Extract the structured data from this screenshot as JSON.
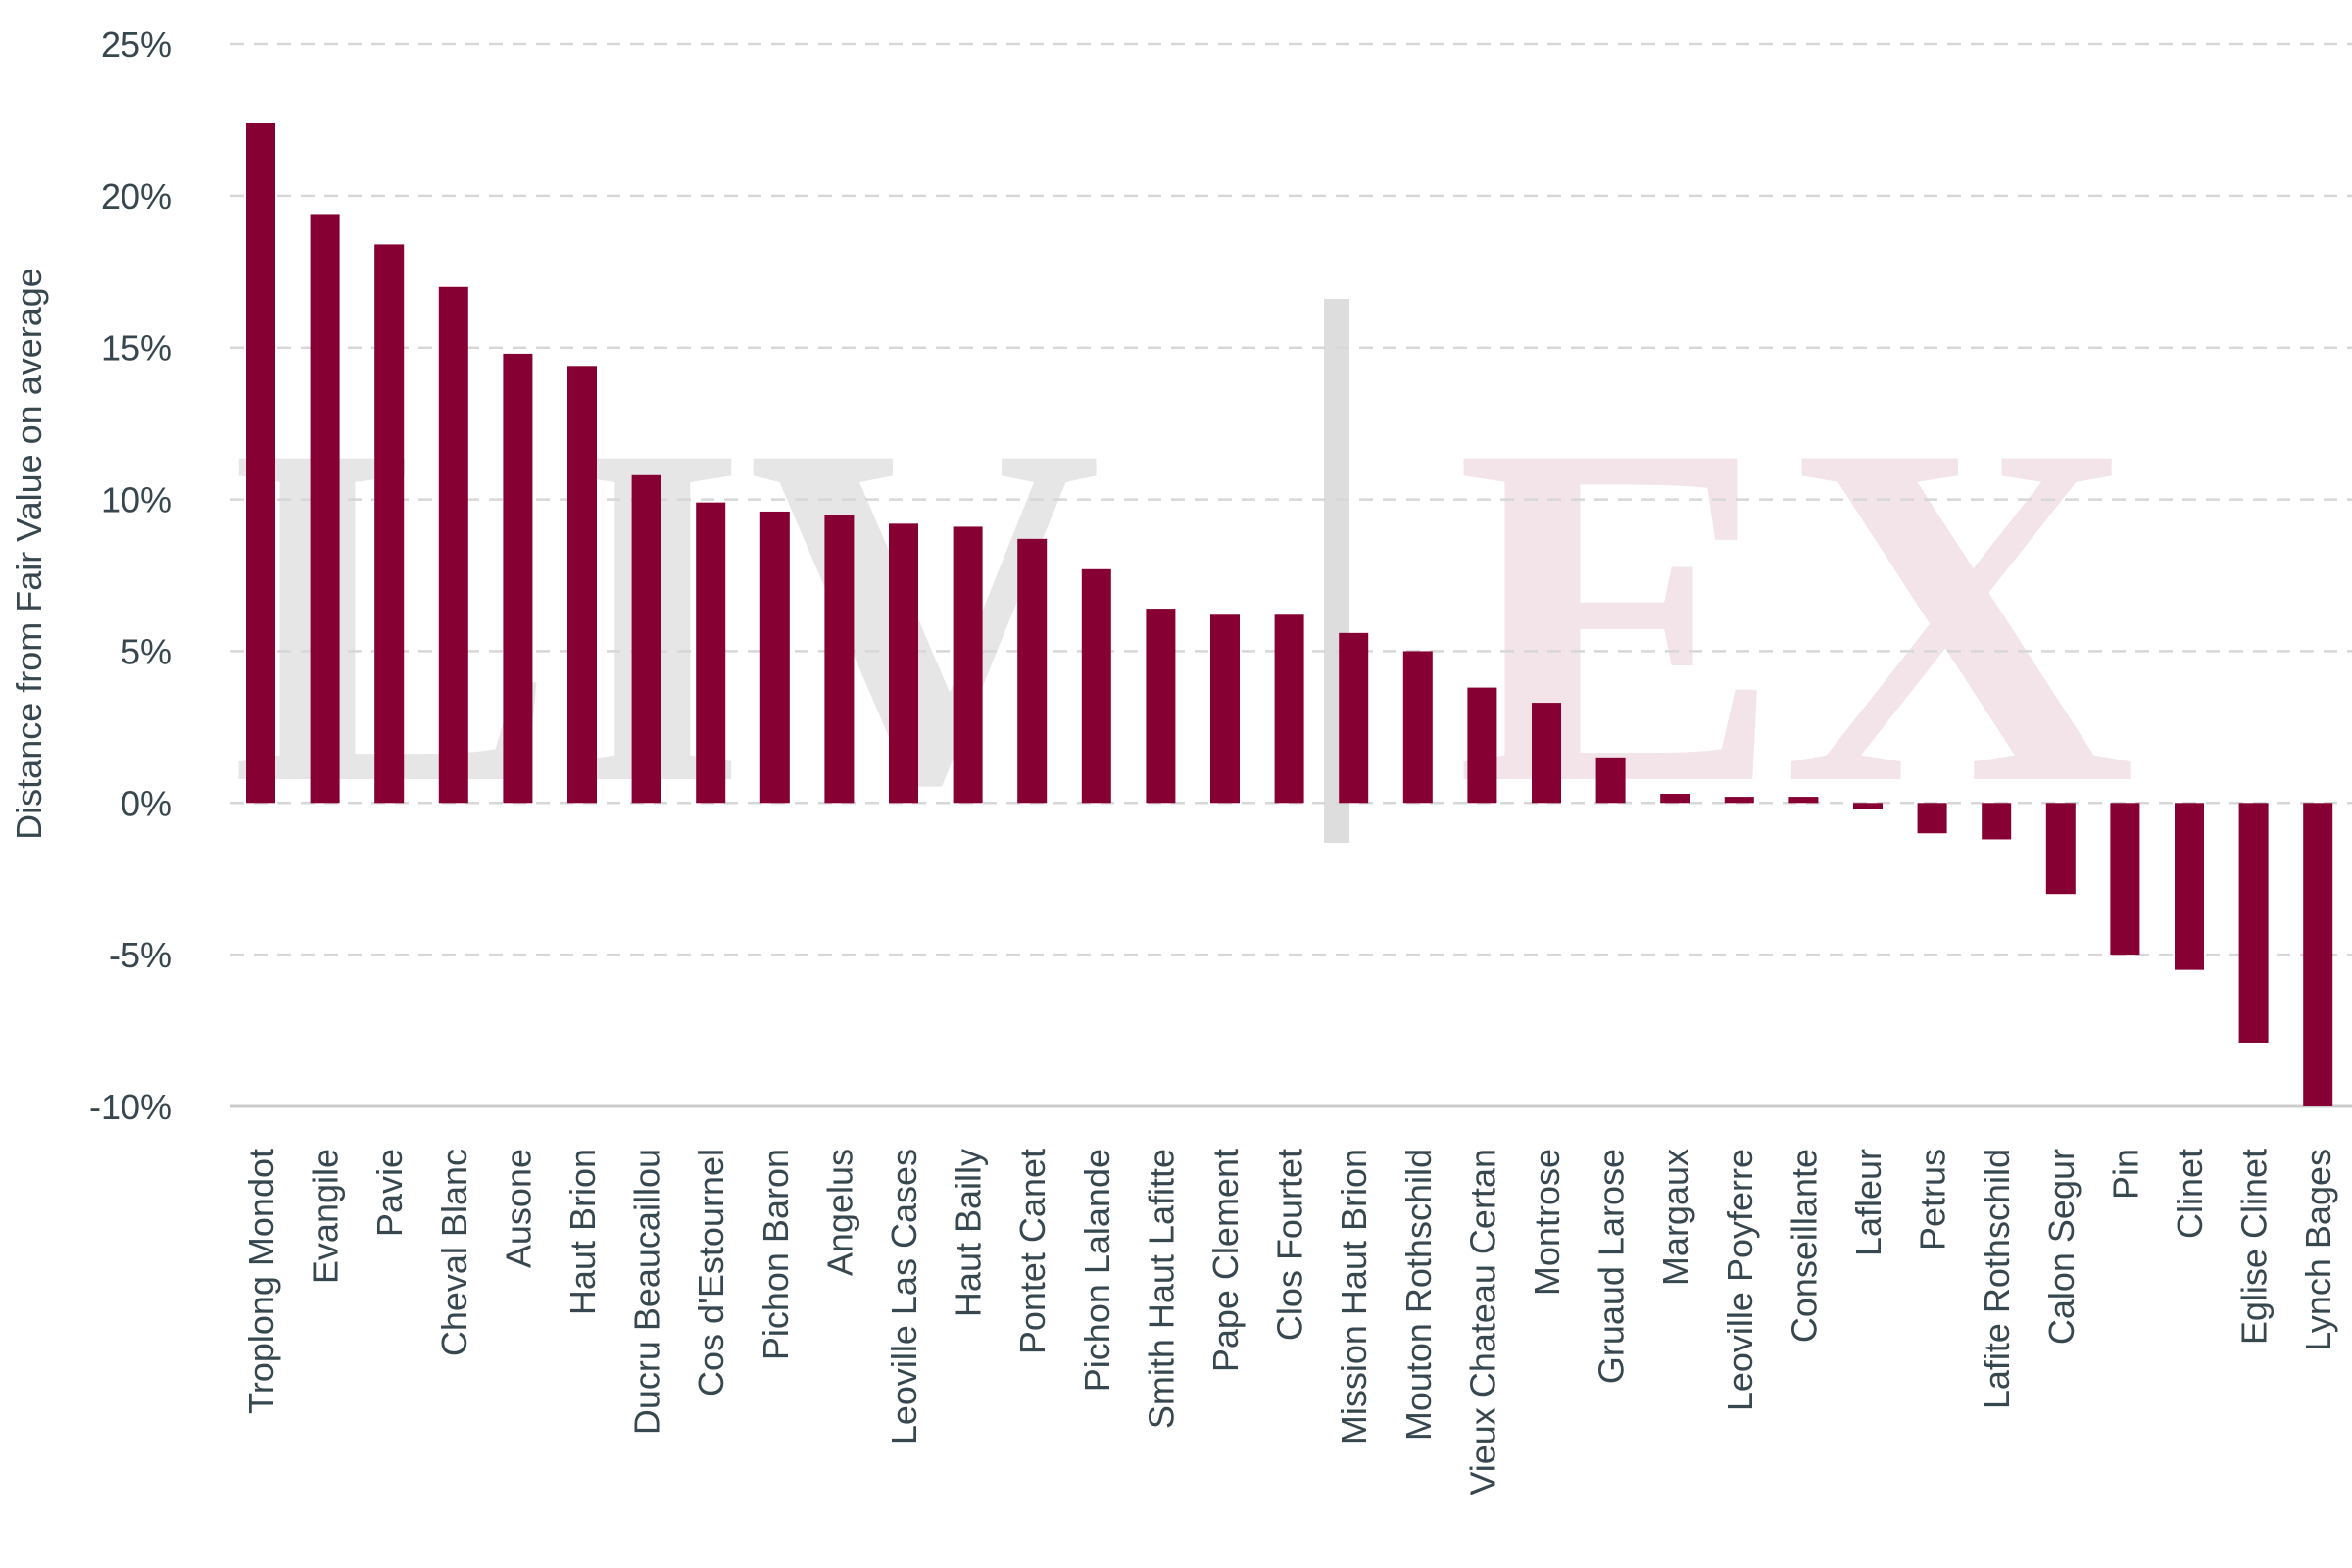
{
  "watermark": {
    "left": "LIV",
    "right": "EX",
    "left_color": "#e6e6e6",
    "right_color": "#f2e4e8",
    "divider_color": "#dddddd"
  },
  "chart_data": {
    "type": "bar",
    "title": "",
    "xlabel": "",
    "ylabel": "Distance from Fair Value on average",
    "ylim": [
      -10,
      25
    ],
    "yticks": [
      25,
      20,
      15,
      10,
      5,
      0,
      -5,
      -10
    ],
    "ytick_labels": [
      "25%",
      "20%",
      "15%",
      "10%",
      "5%",
      "0%",
      "-5%",
      "-10%"
    ],
    "grid": true,
    "bar_color": "#870033",
    "categories": [
      "Troplong Mondot",
      "Evangile",
      "Pavie",
      "Cheval Blanc",
      "Ausone",
      "Haut Brion",
      "Ducru Beaucaillou",
      "Cos d'Estournel",
      "Pichon Baron",
      "Angelus",
      "Leoville Las Cases",
      "Haut Bailly",
      "Pontet Canet",
      "Pichon Lalande",
      "Smith Haut Lafitte",
      "Pape Clement",
      "Clos Fourtet",
      "Mission Haut Brion",
      "Mouton Rothschild",
      "Vieux Chateau Certan",
      "Montrose",
      "Gruaud Larose",
      "Margaux",
      "Leoville Poyferre",
      "Conseillante",
      "Lafleur",
      "Petrus",
      "Lafite Rothschild",
      "Calon Segur",
      "Pin",
      "Clinet",
      "Eglise Clinet",
      "Lynch Bages"
    ],
    "values": [
      22.4,
      19.4,
      18.4,
      17.0,
      14.8,
      14.4,
      10.8,
      9.9,
      9.6,
      9.5,
      9.2,
      9.1,
      8.7,
      7.7,
      6.4,
      6.2,
      6.2,
      5.6,
      5.0,
      3.8,
      3.3,
      1.5,
      0.3,
      0.2,
      0.2,
      -0.2,
      -1.0,
      -1.2,
      -3.0,
      -5.0,
      -5.5,
      -7.9,
      -10.0
    ]
  }
}
